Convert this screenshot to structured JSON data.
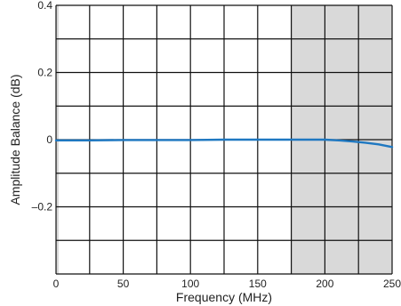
{
  "chart_data": {
    "type": "line",
    "title": "",
    "xlabel": "Frequency (MHz)",
    "ylabel": "Amplitude Balance (dB)",
    "xlim": [
      0,
      250
    ],
    "ylim": [
      -0.4,
      0.4
    ],
    "grid": true,
    "x_grid_step": 25,
    "y_grid_step": 0.1,
    "x_ticks": [
      0,
      50,
      100,
      150,
      200,
      250
    ],
    "x_tick_labels": [
      "0",
      "50",
      "100",
      "150",
      "200",
      "250"
    ],
    "y_ticks": [
      0.4,
      0.2,
      0,
      -0.2
    ],
    "y_tick_labels": [
      "0.4",
      "0.2",
      "0",
      "–0.2"
    ],
    "shaded_regions": [
      {
        "x_from": 0,
        "x_to": 2,
        "color": "#d9d9d9"
      },
      {
        "x_from": 175,
        "x_to": 250,
        "color": "#d9d9d9"
      }
    ],
    "series": [
      {
        "color": "#1f78c1",
        "x": [
          0,
          25,
          50,
          75,
          100,
          125,
          150,
          175,
          200,
          210,
          220,
          230,
          240,
          250
        ],
        "y": [
          -0.002,
          -0.002,
          -0.001,
          -0.001,
          -0.001,
          0,
          0,
          0,
          0,
          -0.002,
          -0.005,
          -0.009,
          -0.014,
          -0.022
        ]
      }
    ]
  }
}
